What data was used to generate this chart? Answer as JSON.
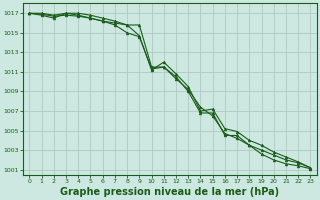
{
  "bg_color": "#cce8e0",
  "grid_color": "#b0c8c0",
  "line_color": "#1a5c1a",
  "marker_color": "#1a5c1a",
  "xlabel": "Graphe pression niveau de la mer (hPa)",
  "xlabel_color": "#1a5c1a",
  "xlabel_fontsize": 7,
  "ylim": [
    1000.5,
    1018.0
  ],
  "xlim": [
    -0.5,
    23.5
  ],
  "yticks": [
    1001,
    1003,
    1005,
    1007,
    1009,
    1011,
    1013,
    1015,
    1017
  ],
  "xticks": [
    0,
    1,
    2,
    3,
    4,
    5,
    6,
    7,
    8,
    9,
    10,
    11,
    12,
    13,
    14,
    15,
    16,
    17,
    18,
    19,
    20,
    21,
    22,
    23
  ],
  "series": [
    [
      1017.0,
      1017.0,
      1016.8,
      1017.0,
      1016.8,
      1016.5,
      1016.2,
      1015.8,
      1015.0,
      1014.6,
      1011.3,
      1011.5,
      1010.3,
      1009.2,
      1007.4,
      1006.5,
      1004.7,
      1004.2,
      1003.5,
      1002.6,
      1002.0,
      1001.6,
      1001.4,
      1001.1
    ],
    [
      1017.0,
      1016.8,
      1016.5,
      1017.0,
      1017.0,
      1016.8,
      1016.5,
      1016.2,
      1015.8,
      1014.7,
      1011.2,
      1012.0,
      1010.8,
      1009.5,
      1007.0,
      1007.2,
      1005.2,
      1004.9,
      1004.0,
      1003.5,
      1002.8,
      1002.3,
      1001.8,
      1001.2
    ],
    [
      1017.0,
      1016.9,
      1016.7,
      1016.8,
      1016.7,
      1016.5,
      1016.2,
      1016.0,
      1015.8,
      1015.8,
      1011.5,
      1011.5,
      1010.5,
      1009.0,
      1006.8,
      1006.8,
      1004.5,
      1004.5,
      1003.5,
      1003.0,
      1002.5,
      1002.0,
      1001.7,
      1001.2
    ]
  ]
}
